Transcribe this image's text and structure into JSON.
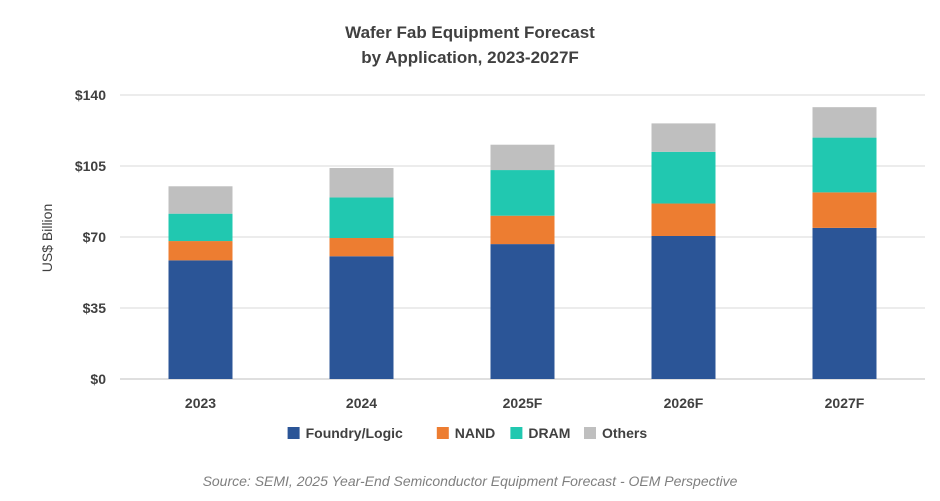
{
  "chart_data": {
    "type": "bar",
    "stacked": true,
    "title": "Wafer Fab Equipment Forecast",
    "subtitle": "by Application, 2023-2027F",
    "xlabel": "",
    "ylabel": "US$ Billion",
    "ylim": [
      0,
      140
    ],
    "yticks": [
      0,
      35,
      70,
      105,
      140
    ],
    "ytick_labels": [
      "$0",
      "$35",
      "$70",
      "$105",
      "$140"
    ],
    "grid": true,
    "legend_position": "bottom",
    "categories": [
      "2023",
      "2024",
      "2025F",
      "2026F",
      "2027F"
    ],
    "series": [
      {
        "name": "Foundry/Logic",
        "color": "#2b5597",
        "values": [
          58.5,
          60.5,
          66.5,
          70.5,
          74.5
        ]
      },
      {
        "name": "NAND",
        "color": "#ed7d31",
        "values": [
          9.5,
          9.0,
          14.0,
          16.0,
          17.5
        ]
      },
      {
        "name": "DRAM",
        "color": "#21c8b0",
        "values": [
          13.5,
          20.0,
          22.5,
          25.5,
          27.0
        ]
      },
      {
        "name": "Others",
        "color": "#bfbfbf",
        "values": [
          13.5,
          14.5,
          12.5,
          14.0,
          15.0
        ]
      }
    ]
  },
  "source_note": "Source: SEMI, 2025 Year-End Semiconductor Equipment Forecast - OEM Perspective"
}
